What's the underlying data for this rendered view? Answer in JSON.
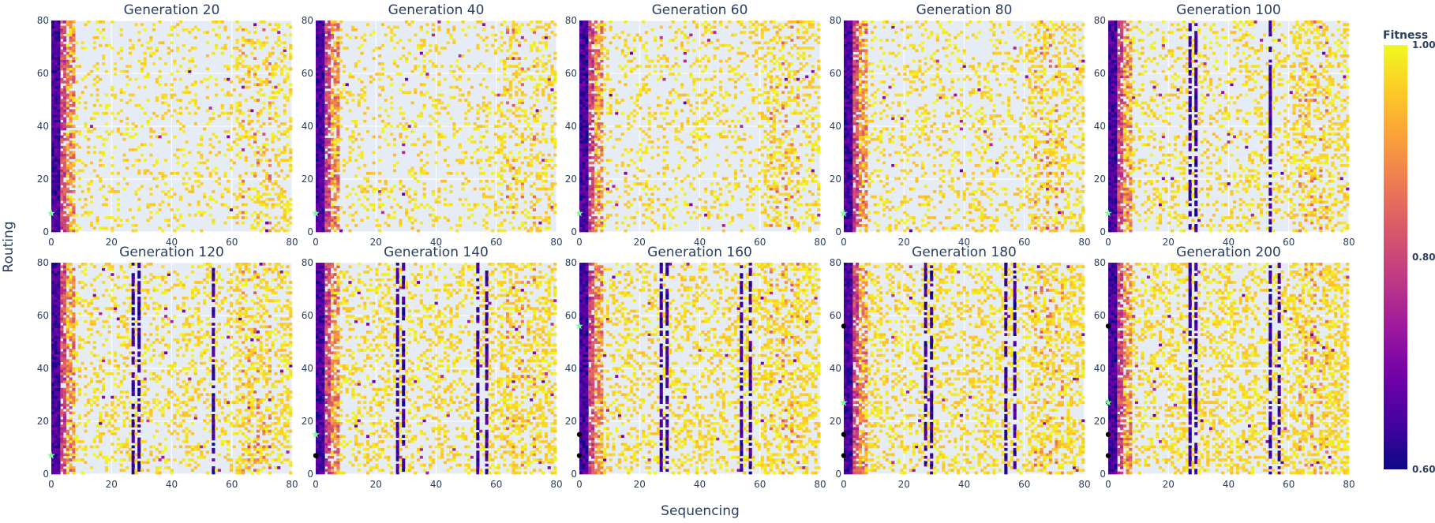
{
  "chart_data": {
    "type": "heatmap",
    "panels": [
      {
        "title": "Generation 20",
        "dark_stripes": [],
        "best_points": [],
        "star": [
          0,
          7
        ]
      },
      {
        "title": "Generation 40",
        "dark_stripes": [],
        "best_points": [],
        "star": [
          0,
          7
        ]
      },
      {
        "title": "Generation 60",
        "dark_stripes": [],
        "best_points": [],
        "star": [
          0,
          7
        ]
      },
      {
        "title": "Generation 80",
        "dark_stripes": [],
        "best_points": [],
        "star": [
          0,
          7
        ]
      },
      {
        "title": "Generation 100",
        "dark_stripes": [
          27,
          29,
          54
        ],
        "best_points": [],
        "star": [
          0,
          7
        ]
      },
      {
        "title": "Generation 120",
        "dark_stripes": [
          27,
          29,
          54
        ],
        "best_points": [],
        "star": [
          0,
          7
        ]
      },
      {
        "title": "Generation 140",
        "dark_stripes": [
          27,
          29,
          54,
          57
        ],
        "best_points": [
          [
            0,
            7
          ]
        ],
        "star": [
          0,
          15
        ]
      },
      {
        "title": "Generation 160",
        "dark_stripes": [
          27,
          29,
          54,
          57
        ],
        "best_points": [
          [
            0,
            7
          ],
          [
            0,
            15
          ]
        ],
        "star": [
          0,
          56
        ]
      },
      {
        "title": "Generation 180",
        "dark_stripes": [
          27,
          29,
          54,
          57
        ],
        "best_points": [
          [
            0,
            7
          ],
          [
            0,
            15
          ],
          [
            0,
            56
          ]
        ],
        "star": [
          0,
          27
        ]
      },
      {
        "title": "Generation 200",
        "dark_stripes": [
          27,
          29,
          54,
          57
        ],
        "best_points": [
          [
            0,
            7
          ],
          [
            0,
            15
          ],
          [
            0,
            27
          ],
          [
            0,
            56
          ]
        ],
        "star": [
          0,
          27
        ]
      }
    ],
    "xlabel": "Sequencing",
    "ylabel": "Routing",
    "xlim": [
      0,
      80
    ],
    "ylim": [
      0,
      80
    ],
    "x_ticks": [
      0,
      20,
      40,
      60,
      80
    ],
    "y_ticks": [
      0,
      20,
      40,
      60,
      80
    ],
    "colorbar": {
      "title": "Fitness",
      "min": 0.6,
      "max": 1.0,
      "ticks": [
        "1.00",
        "0.80",
        "0.60"
      ]
    },
    "grid": true,
    "colorscale": "Plasma",
    "colors": {
      "plot_bg": "#e5ecf6",
      "grid": "#ffffff",
      "star": "#7CFC9A",
      "point": "#000000",
      "text": "#2a3f5f"
    }
  }
}
